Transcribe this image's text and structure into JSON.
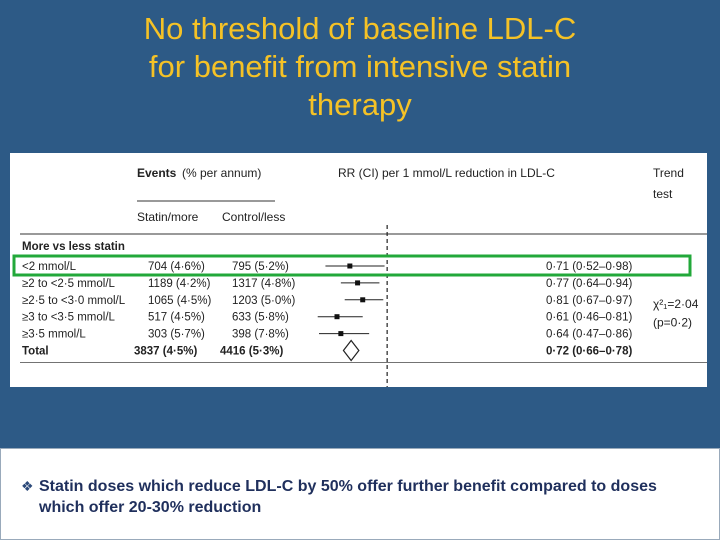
{
  "slide": {
    "title_lines": [
      "No threshold of baseline LDL-C",
      "for benefit from intensive statin",
      "therapy"
    ],
    "bullet_text": "Statin doses which reduce LDL-C by 50% offer further benefit compared to doses which offer 20-30% reduction",
    "bullet_icon": "diamond-bullet-icon"
  },
  "colors": {
    "background": "#2d5a86",
    "title": "#f5c226",
    "highlight_box": "#22a83a",
    "bullet_text": "#1f2f5c"
  },
  "chart_data": {
    "type": "table",
    "headers": {
      "events": "Events",
      "events_unit": "(% per annum)",
      "statin": "Statin/more",
      "control": "Control/less",
      "rr": "RR (CI) per 1 mmol/L reduction in LDL-C",
      "trend_1": "Trend",
      "trend_2": "test"
    },
    "section_label": "More vs less statin",
    "rows": [
      {
        "label": "<2 mmol/L",
        "statin": "704 (4·6%)",
        "control": "795 (5·2%)",
        "rr_text": "0·71 (0·52–0·98)",
        "rr": 0.71,
        "lo": 0.52,
        "hi": 0.98,
        "highlight": true
      },
      {
        "label": "≥2 to <2·5 mmol/L",
        "statin": "1189 (4·2%)",
        "control": "1317 (4·8%)",
        "rr_text": "0·77 (0·64–0·94)",
        "rr": 0.77,
        "lo": 0.64,
        "hi": 0.94
      },
      {
        "label": "≥2·5 to <3·0 mmol/L",
        "statin": "1065 (4·5%)",
        "control": "1203 (5·0%)",
        "rr_text": "0·81 (0·67–0·97)",
        "rr": 0.81,
        "lo": 0.67,
        "hi": 0.97
      },
      {
        "label": "≥3 to <3·5 mmol/L",
        "statin": "517 (4·5%)",
        "control": "633 (5·8%)",
        "rr_text": "0·61 (0·46–0·81)",
        "rr": 0.61,
        "lo": 0.46,
        "hi": 0.81
      },
      {
        "label": "≥3·5 mmol/L",
        "statin": "303 (5·7%)",
        "control": "398 (7·8%)",
        "rr_text": "0·64 (0·47–0·86)",
        "rr": 0.64,
        "lo": 0.47,
        "hi": 0.86
      }
    ],
    "total": {
      "label": "Total",
      "statin": "3837 (4·5%)",
      "control": "4416 (5·3%)",
      "rr_text": "0·72 (0·66–0·78)",
      "rr": 0.72,
      "lo": 0.66,
      "hi": 0.78
    },
    "trend_stat": "χ²₁=2·04",
    "trend_p": "(p=0·2)",
    "x_scale": {
      "min": 0.4,
      "max": 1.1,
      "reference": 1.0
    }
  }
}
